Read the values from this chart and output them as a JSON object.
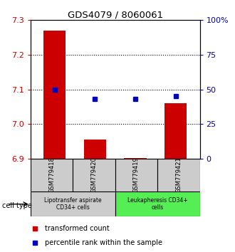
{
  "title": "GDS4079 / 8060061",
  "samples": [
    "GSM779418",
    "GSM779420",
    "GSM779419",
    "GSM779421"
  ],
  "bar_values": [
    7.27,
    6.955,
    6.902,
    7.06
  ],
  "blue_values": [
    50,
    43,
    43,
    45
  ],
  "ylim_left": [
    6.9,
    7.3
  ],
  "ylim_right": [
    0,
    100
  ],
  "yticks_left": [
    6.9,
    7.0,
    7.1,
    7.2,
    7.3
  ],
  "yticks_right": [
    0,
    25,
    50,
    75,
    100
  ],
  "ytick_labels_right": [
    "0",
    "25",
    "50",
    "75",
    "100%"
  ],
  "bar_color": "#cc0000",
  "blue_color": "#0000bb",
  "bar_width": 0.55,
  "cell_type_label": "cell type",
  "group1_label": "Lipotransfer aspirate\nCD34+ cells",
  "group2_label": "Leukapheresis CD34+\ncells",
  "group1_color": "#cccccc",
  "group2_color": "#55ee55",
  "legend_red_label": "transformed count",
  "legend_blue_label": "percentile rank within the sample",
  "background_color": "#ffffff",
  "gridline_yticks": [
    7.0,
    7.1,
    7.2
  ]
}
